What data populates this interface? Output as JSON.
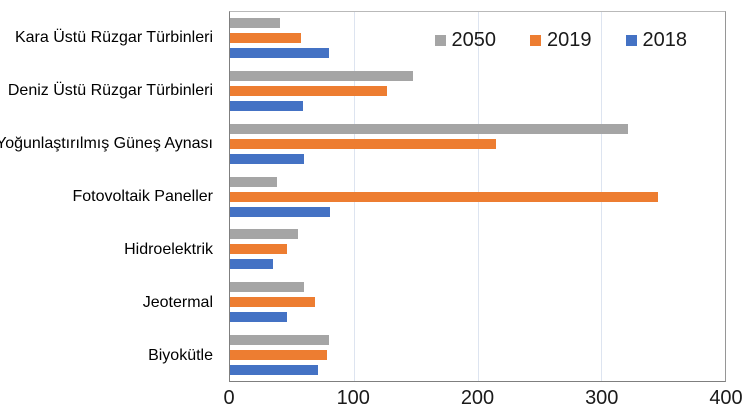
{
  "chart_data": {
    "type": "bar",
    "orientation": "horizontal",
    "title": "",
    "xlabel": "",
    "ylabel": "",
    "categories": [
      "Kara Üstü Rüzgar Türbinleri",
      "Deniz Üstü Rüzgar Türbinleri",
      "Yoğunlaştırılmış Güneş Aynası",
      "Fotovoltaik Paneller",
      "Hidroelektrik",
      "Jeotermal",
      "Biyokütle"
    ],
    "series": [
      {
        "name": "2050",
        "color": "#a5a5a5",
        "values": [
          40,
          148,
          322,
          38,
          55,
          60,
          80
        ]
      },
      {
        "name": "2019",
        "color": "#ed7d31",
        "values": [
          57,
          127,
          215,
          346,
          46,
          69,
          78
        ]
      },
      {
        "name": "2018",
        "color": "#4472c4",
        "values": [
          80,
          59,
          60,
          81,
          35,
          46,
          71
        ]
      }
    ],
    "xlim": [
      0,
      400
    ],
    "x_ticks": [
      0,
      100,
      200,
      300,
      400
    ],
    "grid": "vertical-major",
    "legend_position": "top-right",
    "legend_order": [
      "2050",
      "2019",
      "2018"
    ]
  },
  "colors": {
    "background": "#ffffff",
    "gridline": "#dde4f0",
    "axis_line": "#7f7f7f",
    "text": "#000000",
    "series_2050": "#a5a5a5",
    "series_2019": "#ed7d31",
    "series_2018": "#4472c4"
  }
}
